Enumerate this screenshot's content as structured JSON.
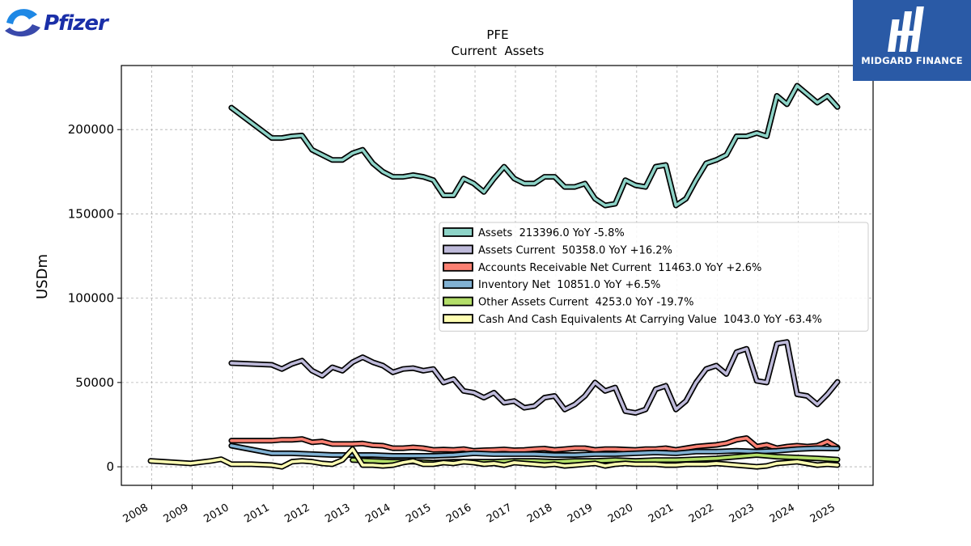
{
  "logos": {
    "left_brand": "Pfizer",
    "right_brand": "MIDGARD FINANCE"
  },
  "chart_data": {
    "type": "area",
    "title": "PFE",
    "subtitle": "Current  Assets",
    "ylabel": "USDm",
    "xlabel": "",
    "ylim": [
      -11000,
      238000
    ],
    "xlim": [
      2007.25,
      2025.85
    ],
    "yticks": [
      0,
      50000,
      100000,
      150000,
      200000
    ],
    "xticks": [
      "2008",
      "2009",
      "2010",
      "2011",
      "2012",
      "2013",
      "2014",
      "2015",
      "2016",
      "2017",
      "2018",
      "2019",
      "2020",
      "2021",
      "2022",
      "2023",
      "2024",
      "2025"
    ],
    "grid": true,
    "legend_position": "center-right",
    "series": [
      {
        "name": "Assets",
        "legend": "Assets  213396.0 YoY -5.8%",
        "color": "#8dd3c7",
        "x": [
          2009.97,
          2010.97,
          2011.22,
          2011.47,
          2011.72,
          2011.97,
          2012.22,
          2012.47,
          2012.72,
          2012.97,
          2013.22,
          2013.47,
          2013.72,
          2013.97,
          2014.22,
          2014.47,
          2014.72,
          2014.97,
          2015.22,
          2015.47,
          2015.72,
          2015.97,
          2016.22,
          2016.47,
          2016.72,
          2016.97,
          2017.22,
          2017.47,
          2017.72,
          2017.97,
          2018.22,
          2018.47,
          2018.72,
          2018.97,
          2019.22,
          2019.47,
          2019.72,
          2019.97,
          2020.22,
          2020.47,
          2020.72,
          2020.97,
          2021.22,
          2021.47,
          2021.72,
          2021.97,
          2022.22,
          2022.47,
          2022.72,
          2022.97,
          2023.22,
          2023.47,
          2023.72,
          2023.97,
          2024.22,
          2024.47,
          2024.72,
          2024.97
        ],
        "values": [
          213000,
          195000,
          195000,
          196000,
          196500,
          188000,
          185000,
          182000,
          182000,
          186000,
          188000,
          180000,
          175000,
          172000,
          172000,
          173000,
          172000,
          170000,
          161000,
          161000,
          171000,
          168000,
          163000,
          171000,
          178000,
          171000,
          168000,
          168000,
          172000,
          172000,
          166000,
          166000,
          168000,
          159000,
          155000,
          156000,
          170000,
          167000,
          166000,
          178000,
          179000,
          155000,
          159000,
          170000,
          180000,
          182000,
          185000,
          196000,
          196000,
          198000,
          196000,
          220000,
          215000,
          226000,
          221000,
          216000,
          220000,
          213396
        ]
      },
      {
        "name": "Assets Current",
        "legend": "Assets Current  50358.0 YoY +16.2%",
        "color": "#bebada",
        "x": [
          2009.97,
          2010.97,
          2011.22,
          2011.47,
          2011.72,
          2011.97,
          2012.22,
          2012.47,
          2012.72,
          2012.97,
          2013.22,
          2013.47,
          2013.72,
          2013.97,
          2014.22,
          2014.47,
          2014.72,
          2014.97,
          2015.22,
          2015.47,
          2015.72,
          2015.97,
          2016.22,
          2016.47,
          2016.72,
          2016.97,
          2017.22,
          2017.47,
          2017.72,
          2017.97,
          2018.22,
          2018.47,
          2018.72,
          2018.97,
          2019.22,
          2019.47,
          2019.72,
          2019.97,
          2020.22,
          2020.47,
          2020.72,
          2020.97,
          2021.22,
          2021.47,
          2021.72,
          2021.97,
          2022.22,
          2022.47,
          2022.72,
          2022.97,
          2023.22,
          2023.47,
          2023.72,
          2023.97,
          2024.22,
          2024.47,
          2024.72,
          2024.97
        ],
        "values": [
          61500,
          60500,
          58000,
          61000,
          63000,
          57000,
          54000,
          59000,
          57000,
          62000,
          65000,
          62000,
          60000,
          56000,
          58000,
          58500,
          57000,
          58000,
          50000,
          52000,
          45000,
          44000,
          41000,
          44000,
          38000,
          39000,
          35000,
          36000,
          41000,
          42000,
          34000,
          37000,
          42000,
          50000,
          45000,
          47000,
          33000,
          32000,
          34000,
          46000,
          48000,
          34000,
          39000,
          50000,
          58000,
          60000,
          55000,
          68000,
          70000,
          51000,
          50000,
          73000,
          74000,
          43000,
          42000,
          37000,
          43000,
          50358
        ]
      },
      {
        "name": "Accounts Receivable Net Current",
        "legend": "Accounts Receivable Net Current  11463.0 YoY +2.6%",
        "color": "#fb8072",
        "x": [
          2009.97,
          2010.97,
          2011.22,
          2011.47,
          2011.72,
          2011.97,
          2012.22,
          2012.47,
          2012.72,
          2012.97,
          2013.22,
          2013.47,
          2013.72,
          2013.97,
          2014.22,
          2014.47,
          2014.72,
          2014.97,
          2015.22,
          2015.47,
          2015.72,
          2015.97,
          2016.22,
          2016.47,
          2016.72,
          2016.97,
          2017.22,
          2017.47,
          2017.72,
          2017.97,
          2018.22,
          2018.47,
          2018.72,
          2018.97,
          2019.22,
          2019.47,
          2019.72,
          2019.97,
          2020.22,
          2020.47,
          2020.72,
          2020.97,
          2021.22,
          2021.47,
          2021.72,
          2021.97,
          2022.22,
          2022.47,
          2022.72,
          2022.97,
          2023.22,
          2023.47,
          2023.72,
          2023.97,
          2024.22,
          2024.47,
          2024.72,
          2024.97
        ],
        "values": [
          15500,
          15500,
          16000,
          16000,
          16500,
          14500,
          15000,
          13500,
          13500,
          13500,
          13800,
          12800,
          12500,
          11000,
          11000,
          11500,
          11000,
          10000,
          10200,
          10000,
          10500,
          9500,
          9800,
          10000,
          10300,
          9800,
          10000,
          10500,
          10800,
          10000,
          10500,
          11000,
          11000,
          10000,
          10500,
          10500,
          10200,
          10000,
          10500,
          10500,
          11000,
          10000,
          11000,
          12000,
          12500,
          13000,
          14000,
          16000,
          17000,
          12000,
          13000,
          11000,
          12000,
          12500,
          12000,
          12500,
          15000,
          11463
        ]
      },
      {
        "name": "Inventory Net",
        "legend": "Inventory Net  10851.0 YoY +6.5%",
        "color": "#80b1d3",
        "x": [
          2009.97,
          2010.97,
          2011.47,
          2011.97,
          2012.47,
          2012.97,
          2013.47,
          2013.97,
          2014.47,
          2014.97,
          2015.47,
          2015.97,
          2016.47,
          2016.97,
          2017.47,
          2017.97,
          2018.47,
          2018.97,
          2019.47,
          2019.97,
          2020.47,
          2020.97,
          2021.47,
          2021.97,
          2022.47,
          2022.97,
          2023.47,
          2023.97,
          2024.47,
          2024.97
        ],
        "values": [
          12500,
          8000,
          8000,
          7500,
          7000,
          7000,
          7000,
          6500,
          6500,
          6500,
          7000,
          8000,
          7500,
          7500,
          7500,
          7000,
          7000,
          7500,
          7500,
          8000,
          8500,
          8000,
          9000,
          9000,
          9500,
          9000,
          9500,
          10500,
          11000,
          10851
        ]
      },
      {
        "name": "Other Assets Current",
        "legend": "Other Assets Current  4253.0 YoY -19.7%",
        "color": "#b3de69",
        "x": [
          2012.97,
          2013.47,
          2013.97,
          2014.47,
          2014.97,
          2015.47,
          2015.97,
          2016.47,
          2016.97,
          2017.47,
          2017.97,
          2018.47,
          2018.97,
          2019.47,
          2019.97,
          2020.47,
          2020.97,
          2021.47,
          2021.97,
          2022.47,
          2022.97,
          2023.47,
          2023.97,
          2024.47,
          2024.97
        ],
        "values": [
          4000,
          3500,
          3000,
          3000,
          2500,
          3000,
          3000,
          3000,
          3500,
          3500,
          3000,
          3500,
          3500,
          4000,
          3500,
          4000,
          4000,
          4500,
          5000,
          6000,
          7000,
          6000,
          5500,
          5000,
          4253
        ]
      },
      {
        "name": "Cash And Cash Equivalents At Carrying Value",
        "legend": "Cash And Cash Equivalents At Carrying Value  1043.0 YoY -63.4%",
        "color": "#ffffb3",
        "x": [
          2007.97,
          2008.97,
          2009.47,
          2009.72,
          2009.97,
          2010.47,
          2010.97,
          2011.22,
          2011.47,
          2011.72,
          2011.97,
          2012.22,
          2012.47,
          2012.72,
          2012.97,
          2013.22,
          2013.47,
          2013.72,
          2013.97,
          2014.22,
          2014.47,
          2014.72,
          2014.97,
          2015.22,
          2015.47,
          2015.72,
          2015.97,
          2016.22,
          2016.47,
          2016.72,
          2016.97,
          2017.22,
          2017.47,
          2017.72,
          2017.97,
          2018.22,
          2018.47,
          2018.72,
          2018.97,
          2019.22,
          2019.47,
          2019.72,
          2019.97,
          2020.22,
          2020.47,
          2020.72,
          2020.97,
          2021.22,
          2021.47,
          2021.72,
          2021.97,
          2022.22,
          2022.47,
          2022.72,
          2022.97,
          2023.22,
          2023.47,
          2023.72,
          2023.97,
          2024.22,
          2024.47,
          2024.72,
          2024.97
        ],
        "values": [
          3500,
          2000,
          3500,
          4500,
          1500,
          1500,
          1000,
          0,
          3000,
          3500,
          3000,
          2000,
          1500,
          4000,
          10500,
          1000,
          1000,
          500,
          1000,
          2500,
          3500,
          1500,
          1500,
          2500,
          2000,
          3000,
          2500,
          1500,
          2000,
          1000,
          2500,
          2000,
          1500,
          1000,
          1500,
          500,
          1000,
          1500,
          2000,
          500,
          1500,
          2000,
          1500,
          1500,
          1500,
          1000,
          1000,
          1500,
          1500,
          1500,
          2000,
          1500,
          1000,
          500,
          0,
          500,
          2000,
          2500,
          3000,
          2000,
          1000,
          1500,
          1043
        ]
      }
    ]
  }
}
